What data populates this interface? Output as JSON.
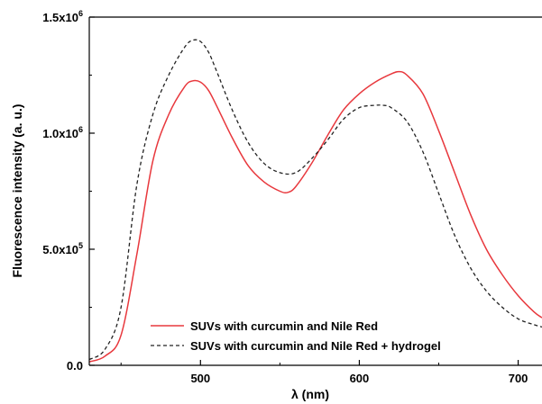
{
  "chart_data": {
    "type": "line",
    "xlabel": "λ (nm)",
    "ylabel": "Fluorescence intensity (a. u.)",
    "xlim": [
      430,
      715
    ],
    "ylim": [
      0,
      1500000
    ],
    "x_ticks": [
      {
        "value": 500,
        "label": "500"
      },
      {
        "value": 600,
        "label": "600"
      },
      {
        "value": 700,
        "label": "700"
      }
    ],
    "y_ticks": [
      {
        "value": 0,
        "mantissa": "0.0",
        "exponent": ""
      },
      {
        "value": 500000,
        "mantissa": "5.0x10",
        "exponent": "5"
      },
      {
        "value": 1000000,
        "mantissa": "1.0x10",
        "exponent": "6"
      },
      {
        "value": 1500000,
        "mantissa": "1.5x10",
        "exponent": "6"
      }
    ],
    "grid": false,
    "legend_position": "bottom-right",
    "series": [
      {
        "name": "SUVs with curcumin and Nile Red",
        "color": "#e8383d",
        "style": "solid",
        "x": [
          430,
          440,
          450,
          460,
          470,
          480,
          490,
          495,
          500,
          505,
          510,
          520,
          530,
          540,
          550,
          555,
          560,
          570,
          580,
          590,
          600,
          610,
          620,
          625,
          630,
          640,
          650,
          660,
          670,
          680,
          690,
          700,
          710,
          715
        ],
        "y": [
          15000,
          40000,
          130000,
          480000,
          880000,
          1080000,
          1200000,
          1225000,
          1220000,
          1185000,
          1120000,
          980000,
          860000,
          790000,
          750000,
          745000,
          770000,
          870000,
          990000,
          1100000,
          1170000,
          1220000,
          1255000,
          1265000,
          1250000,
          1170000,
          1010000,
          830000,
          650000,
          500000,
          390000,
          300000,
          230000,
          205000
        ]
      },
      {
        "name": "SUVs with curcumin and Nile Red + hydrogel",
        "color": "#222222",
        "style": "dashed",
        "x": [
          430,
          440,
          450,
          460,
          470,
          480,
          490,
          495,
          500,
          505,
          510,
          520,
          530,
          540,
          550,
          560,
          570,
          580,
          590,
          600,
          610,
          615,
          620,
          630,
          640,
          650,
          660,
          670,
          680,
          690,
          700,
          710,
          715
        ],
        "y": [
          25000,
          70000,
          250000,
          780000,
          1080000,
          1250000,
          1370000,
          1400000,
          1395000,
          1350000,
          1270000,
          1100000,
          960000,
          870000,
          830000,
          830000,
          890000,
          970000,
          1060000,
          1110000,
          1120000,
          1120000,
          1110000,
          1050000,
          920000,
          740000,
          560000,
          420000,
          320000,
          250000,
          200000,
          175000,
          165000
        ]
      }
    ]
  }
}
